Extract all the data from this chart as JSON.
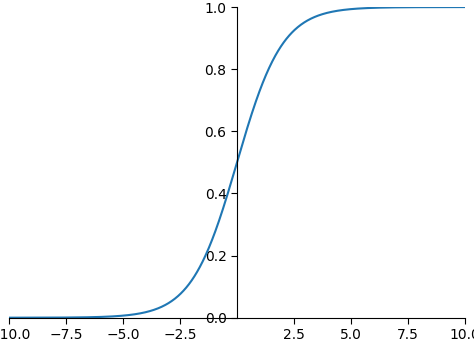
{
  "x_min": -10.0,
  "x_max": 10.0,
  "y_min": 0.0,
  "y_max": 1.0,
  "x_ticks": [
    -10.0,
    -7.5,
    -5.0,
    -2.5,
    2.5,
    5.0,
    7.5,
    10.0
  ],
  "y_ticks": [
    0.0,
    0.2,
    0.4,
    0.6,
    0.8,
    1.0
  ],
  "line_color": "#1f77b4",
  "line_width": 1.5,
  "background_color": "#ffffff",
  "spine_color": "#000000",
  "tick_color": "#000000",
  "label_color": "#000000",
  "n_points": 1000,
  "figsize": [
    4.74,
    3.53
  ],
  "dpi": 100
}
